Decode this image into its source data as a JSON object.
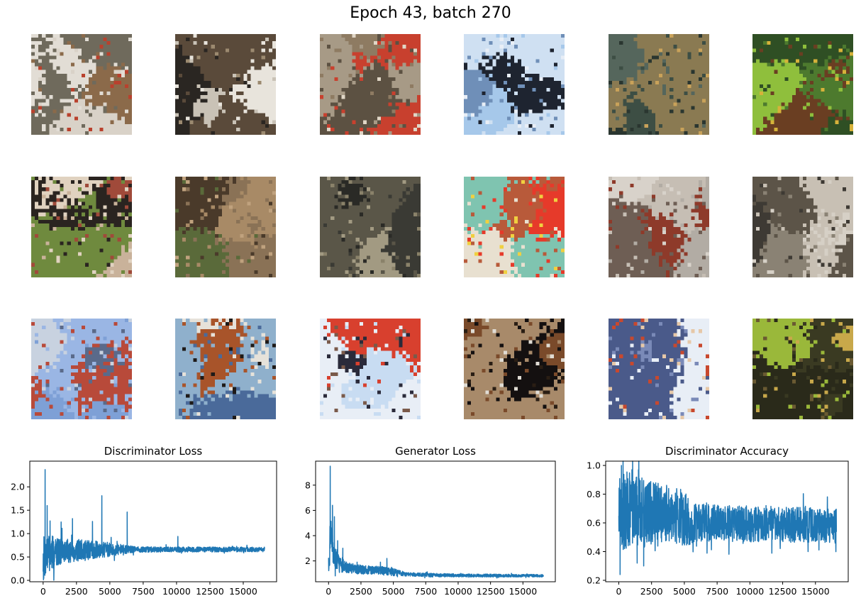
{
  "figure": {
    "title": "Epoch 43, batch 270",
    "sample_grid": {
      "rows": 3,
      "cols": 6,
      "palettes": [
        [
          "#d9d2c8",
          "#8b6a4a",
          "#b9412d",
          "#6f6a5c",
          "#e2ddd5"
        ],
        [
          "#2a2622",
          "#e8e4dc",
          "#9c8a70",
          "#5a4a3a",
          "#c9c2b6"
        ],
        [
          "#8e7b62",
          "#c8402e",
          "#e0d6c6",
          "#5c5142",
          "#a79a86"
        ],
        [
          "#a6c8ea",
          "#1e2430",
          "#e8eef6",
          "#6f8fb8",
          "#cfe0f2"
        ],
        [
          "#3d4e44",
          "#2a3630",
          "#8a7a52",
          "#c9a25a",
          "#55665c"
        ],
        [
          "#4d7a2e",
          "#d6b23a",
          "#8fbf3c",
          "#6a3e22",
          "#2f4f24"
        ],
        [
          "#6f8a3e",
          "#e0d2c0",
          "#a04a3a",
          "#c9b29a",
          "#2a2420"
        ],
        [
          "#8a7256",
          "#5a6a3a",
          "#c0a27e",
          "#4a3a2a",
          "#a88a66"
        ],
        [
          "#5a5648",
          "#3a3a34",
          "#8a826a",
          "#2a2a26",
          "#a29a82"
        ],
        [
          "#7fc4b0",
          "#e63a2a",
          "#b85a3a",
          "#e8e0d0",
          "#f0d040"
        ],
        [
          "#b2aca4",
          "#6e5e54",
          "#d8d2ca",
          "#8e3a2a",
          "#c6beb4"
        ],
        [
          "#8a8274",
          "#c8c0b4",
          "#5c5448",
          "#d6d0c6",
          "#3e3a34"
        ],
        [
          "#7ea0d6",
          "#9ab6e4",
          "#b84a3a",
          "#5a6a8a",
          "#c8d2e0"
        ],
        [
          "#1e1a18",
          "#8fb0cc",
          "#e6e2da",
          "#a8542a",
          "#4a6a9a"
        ],
        [
          "#c8dcf2",
          "#d8402e",
          "#2a2a3a",
          "#e8eef6",
          "#7a5a4a"
        ],
        [
          "#2a1e14",
          "#e0dcd4",
          "#7a4a2a",
          "#a88a6a",
          "#141010"
        ],
        [
          "#e8eef6",
          "#c8482e",
          "#7a8ab8",
          "#e6c8a8",
          "#4a5a8a"
        ],
        [
          "#6a5a32",
          "#9ab83a",
          "#3a3a22",
          "#c8a84a",
          "#2a2a1a"
        ]
      ]
    }
  },
  "chart_data": [
    {
      "type": "line",
      "title": "Discriminator Loss",
      "color": "#1f77b4",
      "xlim": [
        -1000,
        17500
      ],
      "ylim": [
        -0.03,
        2.55
      ],
      "xticks": [
        0,
        2500,
        5000,
        7500,
        10000,
        12500,
        15000
      ],
      "yticks": [
        0.0,
        0.5,
        1.0,
        1.5,
        2.0
      ],
      "xtick_labels": [
        "0",
        "2500",
        "5000",
        "7500",
        "10000",
        "12500",
        "15000"
      ],
      "ytick_labels": [
        "0.0",
        "0.5",
        "1.0",
        "1.5",
        "2.0"
      ],
      "n_points": 16600,
      "trend_x": [
        0,
        300,
        1000,
        2500,
        5000,
        7500,
        10000,
        16600
      ],
      "trend_y": [
        0.45,
        0.55,
        0.62,
        0.64,
        0.66,
        0.66,
        0.66,
        0.66
      ],
      "band_x": [
        0,
        1000,
        3000,
        5000,
        6000,
        7000,
        16600
      ],
      "band_y": [
        0.5,
        0.3,
        0.22,
        0.15,
        0.1,
        0.06,
        0.05
      ],
      "spikes": [
        [
          150,
          2.37
        ],
        [
          300,
          1.6
        ],
        [
          520,
          1.27
        ],
        [
          1350,
          1.25
        ],
        [
          2200,
          1.32
        ],
        [
          3700,
          1.26
        ],
        [
          4400,
          1.81
        ],
        [
          6300,
          1.46
        ],
        [
          10100,
          0.94
        ]
      ]
    },
    {
      "type": "line",
      "title": "Generator Loss",
      "color": "#1f77b4",
      "xlim": [
        -1000,
        17500
      ],
      "ylim": [
        0.35,
        9.9
      ],
      "xticks": [
        0,
        2500,
        5000,
        7500,
        10000,
        12500,
        15000
      ],
      "yticks": [
        2,
        4,
        6,
        8
      ],
      "xtick_labels": [
        "0",
        "2500",
        "5000",
        "7500",
        "10000",
        "12500",
        "15000"
      ],
      "ytick_labels": [
        "2",
        "4",
        "6",
        "8"
      ],
      "n_points": 16600,
      "trend_x": [
        0,
        150,
        400,
        800,
        1500,
        2500,
        4000,
        5000,
        6000,
        7500,
        10000,
        16600
      ],
      "trend_y": [
        1.2,
        4.5,
        2.6,
        1.8,
        1.45,
        1.3,
        1.25,
        1.1,
        0.95,
        0.88,
        0.85,
        0.83
      ],
      "band_x": [
        0,
        500,
        1500,
        3000,
        5000,
        6000,
        16600
      ],
      "band_y": [
        1.6,
        0.9,
        0.4,
        0.35,
        0.3,
        0.15,
        0.1
      ],
      "spikes": [
        [
          130,
          9.5
        ],
        [
          300,
          6.4
        ],
        [
          450,
          5.5
        ],
        [
          700,
          3.6
        ],
        [
          1100,
          3.0
        ],
        [
          2200,
          1.9
        ],
        [
          4000,
          1.9
        ],
        [
          4500,
          2.2
        ]
      ]
    },
    {
      "type": "line",
      "title": "Discriminator Accuracy",
      "color": "#1f77b4",
      "xlim": [
        -1000,
        17500
      ],
      "ylim": [
        0.19,
        1.03
      ],
      "xticks": [
        0,
        2500,
        5000,
        7500,
        10000,
        12500,
        15000
      ],
      "yticks": [
        0.2,
        0.4,
        0.6,
        0.8,
        1.0
      ],
      "xtick_labels": [
        "0",
        "2500",
        "5000",
        "7500",
        "10000",
        "12500",
        "15000"
      ],
      "ytick_labels": [
        "0.2",
        "0.4",
        "0.6",
        "0.8",
        "1.0"
      ],
      "n_points": 16600,
      "trend_x": [
        0,
        1000,
        2500,
        4500,
        5500,
        6500,
        16600
      ],
      "trend_y": [
        0.7,
        0.68,
        0.66,
        0.65,
        0.61,
        0.6,
        0.58
      ],
      "band_x": [
        0,
        1000,
        3000,
        5000,
        6000,
        16600
      ],
      "band_y": [
        0.3,
        0.26,
        0.22,
        0.19,
        0.13,
        0.12
      ],
      "spikes": [
        [
          100,
          0.24
        ],
        [
          200,
          1.0
        ],
        [
          1900,
          0.3
        ],
        [
          1400,
          0.32
        ],
        [
          1500,
          0.97
        ],
        [
          1000,
          0.97
        ],
        [
          16500,
          0.46
        ]
      ]
    }
  ]
}
